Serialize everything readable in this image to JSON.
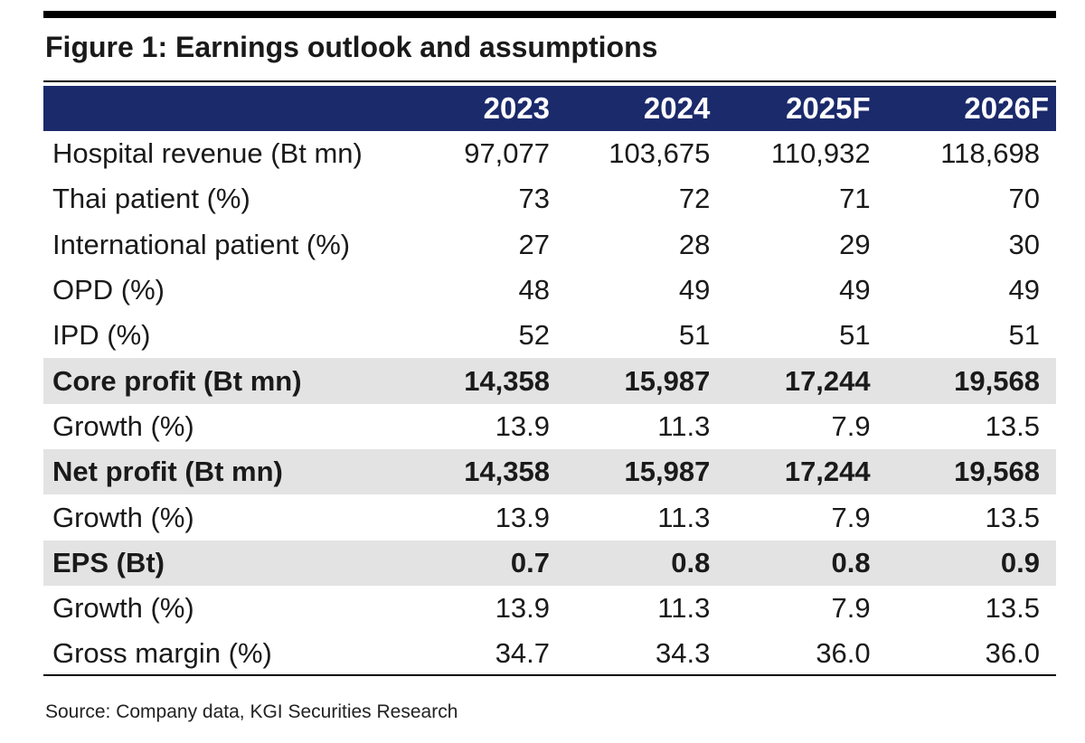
{
  "figure": {
    "title": "Figure 1: Earnings outlook and assumptions",
    "source": "Source: Company data, KGI Securities Research"
  },
  "table": {
    "header_color": "#1b2a6b",
    "highlight_color": "#e3e3e3",
    "columns": [
      "",
      "2023",
      "2024",
      "2025F",
      "2026F"
    ],
    "rows": [
      {
        "label": "Hospital revenue (Bt mn)",
        "values": [
          "97,077",
          "103,675",
          "110,932",
          "118,698"
        ],
        "bold": false
      },
      {
        "label": "Thai patient (%)",
        "values": [
          "73",
          "72",
          "71",
          "70"
        ],
        "bold": false
      },
      {
        "label": "International patient (%)",
        "values": [
          "27",
          "28",
          "29",
          "30"
        ],
        "bold": false
      },
      {
        "label": "OPD (%)",
        "values": [
          "48",
          "49",
          "49",
          "49"
        ],
        "bold": false
      },
      {
        "label": "IPD (%)",
        "values": [
          "52",
          "51",
          "51",
          "51"
        ],
        "bold": false
      },
      {
        "label": "Core profit (Bt mn)",
        "values": [
          "14,358",
          "15,987",
          "17,244",
          "19,568"
        ],
        "bold": true
      },
      {
        "label": "Growth (%)",
        "values": [
          "13.9",
          "11.3",
          "7.9",
          "13.5"
        ],
        "bold": false
      },
      {
        "label": "Net profit (Bt mn)",
        "values": [
          "14,358",
          "15,987",
          "17,244",
          "19,568"
        ],
        "bold": true
      },
      {
        "label": "Growth (%)",
        "values": [
          "13.9",
          "11.3",
          "7.9",
          "13.5"
        ],
        "bold": false
      },
      {
        "label": "EPS (Bt)",
        "values": [
          "0.7",
          "0.8",
          "0.8",
          "0.9"
        ],
        "bold": true
      },
      {
        "label": "Growth (%)",
        "values": [
          "13.9",
          "11.3",
          "7.9",
          "13.5"
        ],
        "bold": false
      },
      {
        "label": "Gross margin (%)",
        "values": [
          "34.7",
          "34.3",
          "36.0",
          "36.0"
        ],
        "bold": false
      }
    ]
  }
}
